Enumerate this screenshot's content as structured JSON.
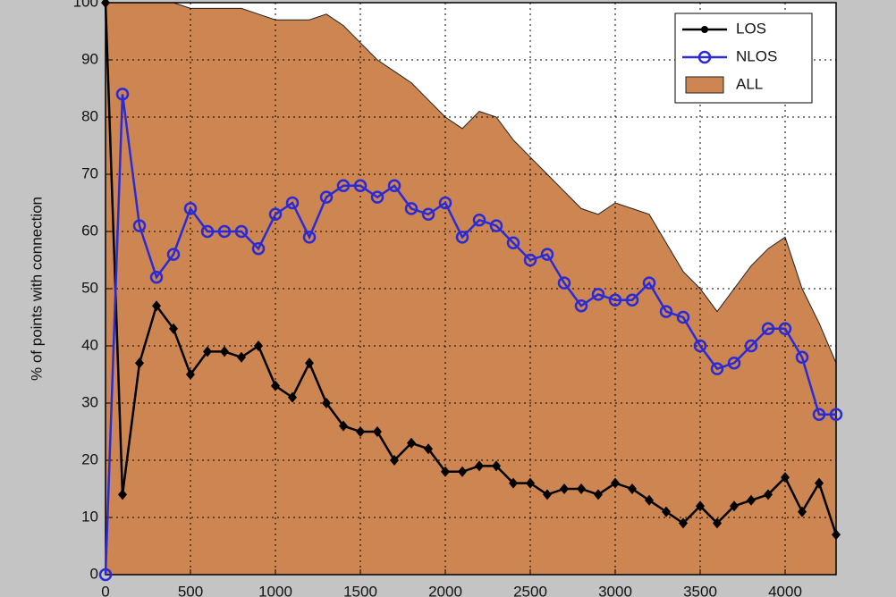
{
  "chart_data": {
    "type": "line",
    "y_label": "% of points with connection",
    "x": [
      0,
      100,
      200,
      300,
      400,
      500,
      600,
      700,
      800,
      900,
      1000,
      1100,
      1200,
      1300,
      1400,
      1500,
      1600,
      1700,
      1800,
      1900,
      2000,
      2100,
      2200,
      2300,
      2400,
      2500,
      2600,
      2700,
      2800,
      2900,
      3000,
      3100,
      3200,
      3300,
      3400,
      3500,
      3600,
      3700,
      3800,
      3900,
      4000,
      4100,
      4200,
      4300
    ],
    "series": [
      {
        "name": "LOS",
        "color": "#000000",
        "marker": "dot",
        "values": [
          100,
          14,
          37,
          47,
          43,
          35,
          39,
          39,
          38,
          40,
          33,
          31,
          37,
          30,
          26,
          25,
          25,
          20,
          23,
          22,
          18,
          18,
          19,
          19,
          16,
          16,
          14,
          15,
          15,
          14,
          16,
          15,
          13,
          11,
          9,
          12,
          9,
          12,
          13,
          14,
          17,
          11,
          16,
          7
        ]
      },
      {
        "name": "NLOS",
        "color": "#2b2bd6",
        "marker": "circle",
        "values": [
          0,
          84,
          61,
          52,
          56,
          64,
          60,
          60,
          60,
          57,
          63,
          65,
          59,
          66,
          68,
          68,
          66,
          68,
          64,
          63,
          65,
          59,
          62,
          61,
          58,
          55,
          56,
          51,
          47,
          49,
          48,
          48,
          51,
          46,
          45,
          40,
          36,
          37,
          40,
          43,
          43,
          38,
          28,
          28
        ]
      },
      {
        "name": "ALL",
        "color": "#cd8552",
        "area": true,
        "values": [
          100,
          100,
          100,
          100,
          100,
          99,
          99,
          99,
          99,
          98,
          97,
          97,
          97,
          98,
          96,
          93,
          90,
          88,
          86,
          83,
          80,
          78,
          81,
          80,
          76,
          73,
          70,
          67,
          64,
          63,
          65,
          64,
          63,
          58,
          53,
          50,
          46,
          50,
          54,
          57,
          59,
          50,
          44,
          37
        ]
      }
    ],
    "xlim": [
      0,
      4300
    ],
    "xticks": [
      0,
      500,
      1000,
      1500,
      2000,
      2500,
      3000,
      3500,
      4000
    ],
    "ylim": [
      0,
      100
    ],
    "yticks": [
      0,
      10,
      20,
      30,
      40,
      50,
      60,
      70,
      80,
      90,
      100
    ],
    "grid": true,
    "legend": "northeast"
  }
}
